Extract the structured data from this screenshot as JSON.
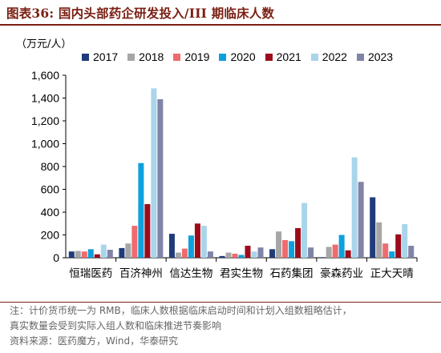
{
  "header": {
    "title": "图表36:   国内头部药企研发投入/III 期临床人数"
  },
  "chart_data": {
    "type": "bar",
    "unit_label": "（万元/人）",
    "categories": [
      "恒瑞医药",
      "百济神州",
      "信达生物",
      "君实生物",
      "石药集团",
      "豪森药业",
      "正大天晴"
    ],
    "series": [
      {
        "name": "2017",
        "color": "#1f3b7a",
        "values": [
          55,
          85,
          210,
          15,
          75,
          5,
          530
        ]
      },
      {
        "name": "2018",
        "color": "#a6a6a6",
        "values": [
          60,
          125,
          45,
          45,
          230,
          95,
          310
        ]
      },
      {
        "name": "2019",
        "color": "#ee6b6e",
        "values": [
          55,
          280,
          80,
          35,
          155,
          115,
          125
        ]
      },
      {
        "name": "2020",
        "color": "#0ea0dc",
        "values": [
          75,
          830,
          195,
          25,
          145,
          200,
          55
        ]
      },
      {
        "name": "2021",
        "color": "#9c0b1b",
        "values": [
          30,
          470,
          300,
          105,
          260,
          65,
          205
        ]
      },
      {
        "name": "2022",
        "color": "#a9d5ea",
        "values": [
          115,
          1485,
          280,
          55,
          480,
          880,
          295
        ]
      },
      {
        "name": "2023",
        "color": "#8084a6",
        "values": [
          70,
          1390,
          55,
          90,
          90,
          665,
          105
        ]
      }
    ],
    "ylim": [
      0,
      1600
    ],
    "yticks": [
      "0",
      "200",
      "400",
      "600",
      "800",
      "1,000",
      "1,200",
      "1,400",
      "1,600"
    ],
    "grid": false,
    "legend_position": "top"
  },
  "footer": {
    "note_line1": "注：计价货币统一为 RMB，临床人数根据临床启动时间和计划入组数粗略估计，",
    "note_line2": "真实数量会受到实际入组人数和临床推进节奏影响",
    "source": "资料来源：医药魔方，Wind，华泰研究"
  }
}
